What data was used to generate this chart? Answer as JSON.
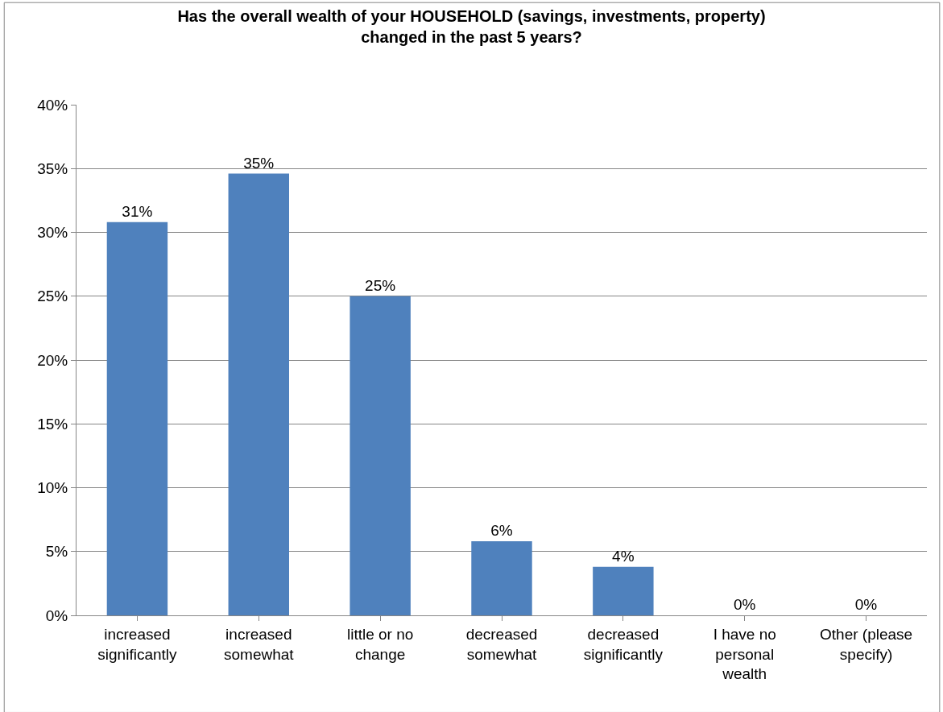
{
  "chart_data": {
    "type": "bar",
    "title": "Has the overall wealth of your HOUSEHOLD (savings, investments, property) changed in the past 5 years?",
    "categories": [
      "increased significantly",
      "increased somewhat",
      "little or no change",
      "decreased somewhat",
      "decreased significantly",
      "I have no personal wealth",
      "Other (please specify)"
    ],
    "values": [
      30.8,
      34.6,
      25.0,
      5.8,
      3.8,
      0,
      0
    ],
    "value_labels": [
      "31%",
      "35%",
      "25%",
      "6%",
      "4%",
      "0%",
      "0%"
    ],
    "color": "#4f81bd",
    "ylim": [
      0,
      40
    ],
    "yticks": [
      {
        "value": 0,
        "label": "0%"
      },
      {
        "value": 5,
        "label": "5%"
      },
      {
        "value": 10,
        "label": "10%"
      },
      {
        "value": 15,
        "label": "15%"
      },
      {
        "value": 20,
        "label": "20%"
      },
      {
        "value": 25,
        "label": "25%"
      },
      {
        "value": 30,
        "label": "30%"
      },
      {
        "value": 35,
        "label": "35%"
      },
      {
        "value": 40,
        "label": "40%"
      }
    ],
    "grid": "y",
    "legend": false
  }
}
